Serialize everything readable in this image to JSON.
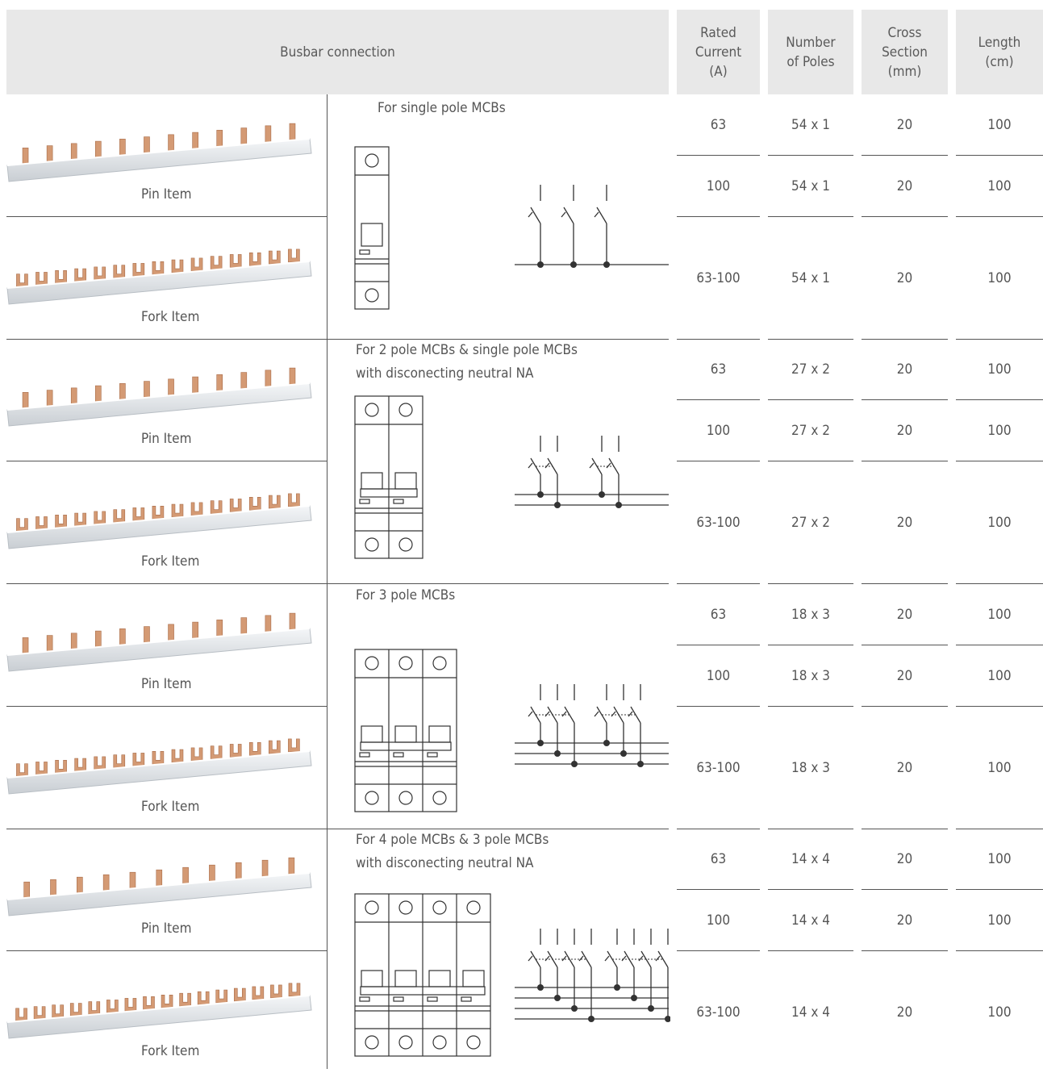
{
  "header": {
    "busbar": "Busbar connection",
    "rated": "Rated\nCurrent\n(A)",
    "poles": "Number\nof Poles",
    "cross": "Cross\nSection\n(mm)",
    "length": "Length\n(cm)"
  },
  "colors": {
    "header_bg": "#e8e8e8",
    "copper": "#d49a74",
    "rail": "#e6e9ec",
    "line": "#555555"
  },
  "sections": [
    {
      "title": "For single pole MCBs",
      "pin_label": "Pin Item",
      "fork_label": "Fork Item",
      "rows": [
        {
          "rated": "63",
          "poles": "54 x 1",
          "cross": "20",
          "length": "100"
        },
        {
          "rated": "100",
          "poles": "54 x 1",
          "cross": "20",
          "length": "100"
        },
        {
          "rated": "63-100",
          "poles": "54 x 1",
          "cross": "20",
          "length": "100"
        }
      ]
    },
    {
      "title": "For 2 pole MCBs & single pole MCBs\nwith disconecting neutral NA",
      "pin_label": "Pin Item",
      "fork_label": "Fork Item",
      "rows": [
        {
          "rated": "63",
          "poles": "27 x 2",
          "cross": "20",
          "length": "100"
        },
        {
          "rated": "100",
          "poles": "27 x 2",
          "cross": "20",
          "length": "100"
        },
        {
          "rated": "63-100",
          "poles": "27 x 2",
          "cross": "20",
          "length": "100"
        }
      ]
    },
    {
      "title": "For 3 pole MCBs",
      "pin_label": "Pin Item",
      "fork_label": "Fork Item",
      "rows": [
        {
          "rated": "63",
          "poles": "18 x 3",
          "cross": "20",
          "length": "100"
        },
        {
          "rated": "100",
          "poles": "18 x 3",
          "cross": "20",
          "length": "100"
        },
        {
          "rated": "63-100",
          "poles": "18 x 3",
          "cross": "20",
          "length": "100"
        }
      ]
    },
    {
      "title": "For 4 pole MCBs & 3 pole MCBs\nwith disconecting neutral NA",
      "pin_label": "Pin Item",
      "fork_label": "Fork Item",
      "rows": [
        {
          "rated": "63",
          "poles": "14 x 4",
          "cross": "20",
          "length": "100"
        },
        {
          "rated": "100",
          "poles": "14 x 4",
          "cross": "20",
          "length": "100"
        },
        {
          "rated": "63-100",
          "poles": "14 x 4",
          "cross": "20",
          "length": "100"
        }
      ]
    }
  ]
}
